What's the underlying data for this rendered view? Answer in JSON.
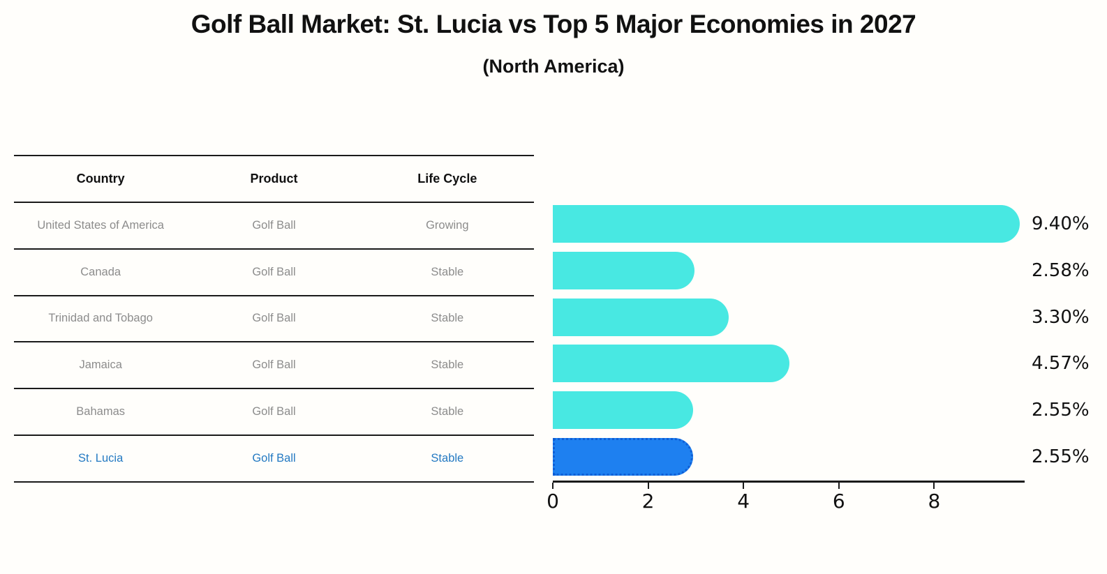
{
  "header": {
    "title": "Golf Ball Market: St. Lucia vs Top 5 Major Economies in 2027",
    "subtitle": "(North America)"
  },
  "table": {
    "columns": [
      "Country",
      "Product",
      "Life Cycle"
    ],
    "rows": [
      {
        "country": "United States of America",
        "product": "Golf Ball",
        "life_cycle": "Growing",
        "highlight": false
      },
      {
        "country": "Canada",
        "product": "Golf Ball",
        "life_cycle": "Stable",
        "highlight": false
      },
      {
        "country": "Trinidad and Tobago",
        "product": "Golf Ball",
        "life_cycle": "Stable",
        "highlight": false
      },
      {
        "country": "Jamaica",
        "product": "Golf Ball",
        "life_cycle": "Stable",
        "highlight": false
      },
      {
        "country": "Bahamas",
        "product": "Golf Ball",
        "life_cycle": "Stable",
        "highlight": false
      },
      {
        "country": "St. Lucia",
        "product": "Golf Ball",
        "life_cycle": "Stable",
        "highlight": true
      }
    ]
  },
  "chart_data": {
    "type": "bar",
    "orientation": "horizontal",
    "title": "Golf Ball Market: St. Lucia vs Top 5 Major Economies in 2027 (North America)",
    "categories": [
      "United States of America",
      "Canada",
      "Trinidad and Tobago",
      "Jamaica",
      "Bahamas",
      "St. Lucia"
    ],
    "values": [
      9.4,
      2.58,
      3.3,
      4.57,
      2.55,
      2.55
    ],
    "value_labels": [
      "9.40%",
      "2.58%",
      "3.30%",
      "4.57%",
      "2.55%",
      "2.55%"
    ],
    "x_ticks": [
      0,
      2,
      4,
      6,
      8
    ],
    "xlim": [
      0,
      9.9
    ],
    "grid": false,
    "legend": "none",
    "bar_color": "#48E8E2",
    "highlight_index": 5,
    "highlight_color": "#1E80F0",
    "highlight_border_color": "#0F5FD6"
  },
  "colors": {
    "highlight_text": "#2379c2",
    "muted_text": "#8c8c8c",
    "heading_text": "#111111"
  }
}
